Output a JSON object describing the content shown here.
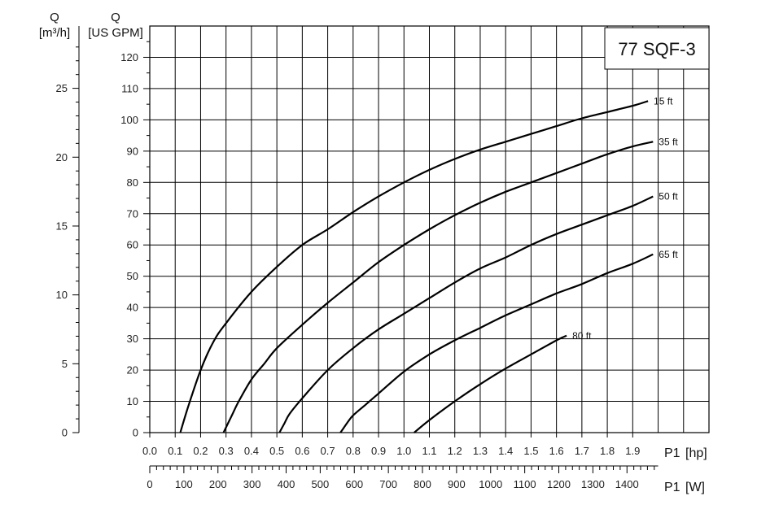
{
  "chart_data": {
    "type": "line",
    "model_label": "77 SQF-3",
    "x_axis": {
      "label_name": "P1",
      "label_unit": "[hp]",
      "ticks": [
        "0.0",
        "0.1",
        "0.2",
        "0.3",
        "0.4",
        "0.5",
        "0.6",
        "0.7",
        "0.8",
        "0.9",
        "1.0",
        "1.1",
        "1.2",
        "1.3",
        "1.4",
        "1.5",
        "1.6",
        "1.7",
        "1.8",
        "1.9"
      ],
      "range": [
        0,
        2.2
      ]
    },
    "x2_axis": {
      "label_name": "P1",
      "label_unit": "[W]",
      "ticks": [
        "0",
        "100",
        "200",
        "300",
        "400",
        "500",
        "600",
        "700",
        "800",
        "900",
        "1000",
        "1100",
        "1200",
        "1300",
        "1400"
      ]
    },
    "y_axis_left": {
      "label_name": "Q",
      "label_unit": "[m³/h]",
      "ticks": [
        "0",
        "5",
        "10",
        "15",
        "20",
        "25"
      ]
    },
    "y_axis_right": {
      "label_name": "Q",
      "label_unit": "[US GPM]",
      "ticks": [
        "0",
        "10",
        "20",
        "30",
        "40",
        "50",
        "60",
        "70",
        "80",
        "90",
        "100",
        "110",
        "120"
      ],
      "range": [
        0,
        130
      ]
    },
    "grid": true,
    "series": [
      {
        "name": "15 ft",
        "x": [
          0.12,
          0.15,
          0.2,
          0.25,
          0.3,
          0.4,
          0.5,
          0.6,
          0.7,
          0.8,
          0.9,
          1.0,
          1.1,
          1.2,
          1.3,
          1.4,
          1.5,
          1.6,
          1.7,
          1.8,
          1.9,
          1.96
        ],
        "y": [
          0,
          8,
          20,
          29,
          35,
          45,
          53,
          60,
          65,
          70.5,
          75.5,
          80,
          84,
          87.5,
          90.5,
          93,
          95.5,
          98,
          100.5,
          102.5,
          104.5,
          106
        ]
      },
      {
        "name": "35 ft",
        "x": [
          0.29,
          0.32,
          0.35,
          0.4,
          0.45,
          0.5,
          0.6,
          0.7,
          0.8,
          0.9,
          1.0,
          1.1,
          1.2,
          1.3,
          1.4,
          1.5,
          1.6,
          1.7,
          1.8,
          1.9,
          1.98
        ],
        "y": [
          0,
          5,
          10,
          17,
          22,
          27,
          34.5,
          41.5,
          48,
          54.5,
          60,
          65,
          69.5,
          73.5,
          77,
          80,
          83,
          86,
          89,
          91.5,
          93
        ]
      },
      {
        "name": "50 ft",
        "x": [
          0.51,
          0.53,
          0.55,
          0.6,
          0.7,
          0.8,
          0.9,
          1.0,
          1.1,
          1.2,
          1.3,
          1.4,
          1.5,
          1.6,
          1.7,
          1.8,
          1.9,
          1.98
        ],
        "y": [
          0,
          3,
          6,
          11,
          20,
          27,
          33,
          38,
          43,
          48,
          52.5,
          56,
          60,
          63.5,
          66.5,
          69.5,
          72.5,
          75.5
        ]
      },
      {
        "name": "65 ft",
        "x": [
          0.75,
          0.78,
          0.8,
          0.85,
          0.9,
          1.0,
          1.1,
          1.2,
          1.3,
          1.4,
          1.5,
          1.6,
          1.7,
          1.8,
          1.9,
          1.98
        ],
        "y": [
          0,
          3.5,
          5.5,
          9,
          12.5,
          19.5,
          25,
          29.5,
          33.5,
          37.5,
          41,
          44.5,
          47.5,
          51,
          54,
          57
        ]
      },
      {
        "name": "80 ft",
        "x": [
          1.04,
          1.1,
          1.2,
          1.3,
          1.4,
          1.5,
          1.6,
          1.64
        ],
        "y": [
          0,
          4,
          10,
          15.5,
          20.5,
          25,
          29.5,
          31
        ]
      }
    ]
  }
}
